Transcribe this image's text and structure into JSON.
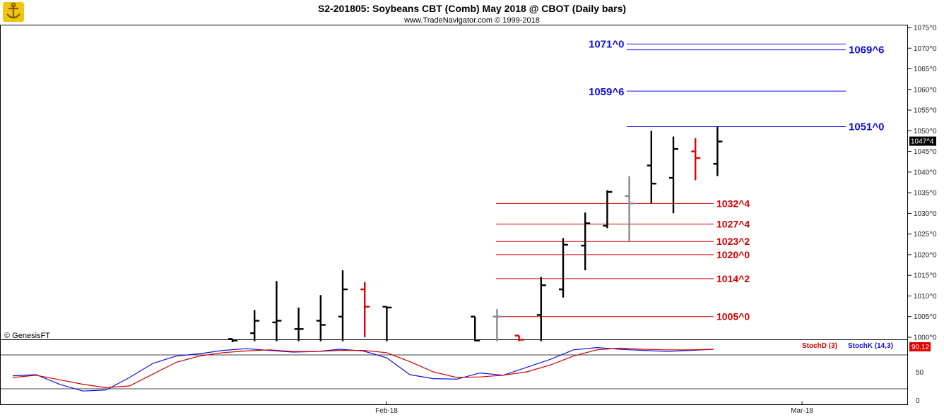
{
  "header": {
    "title": "S2-201805:  Soybeans CBT (Comb) May 2018 @ CBOT  (Daily bars)",
    "subtitle": "www.TradeNavigator.com © 1999-2018",
    "watermark": "© GenesisFT"
  },
  "colors": {
    "up_bar": "#000000",
    "down_bar": "#e00000",
    "neutral_bar": "#888888",
    "blue_level": "#1010e0",
    "red_level": "#d00000",
    "stoch_k": "#1010e0",
    "stoch_d": "#d00000",
    "last_price_bg": "#000000",
    "stoch_value_bg": "#e00000"
  },
  "chart_data": [
    {
      "type": "ohlc",
      "title": "S2-201805:  Soybeans CBT (Comb) May 2018 @ CBOT  (Daily bars)",
      "ylim": [
        996,
        1076
      ],
      "y_ticks": [
        "1075^0",
        "1070^0",
        "1065^0",
        "1060^0",
        "1055^0",
        "1050^0",
        "1045^0",
        "1040^0",
        "1035^0",
        "1030^0",
        "1025^0",
        "1020^0",
        "1015^0",
        "1010^0",
        "1005^0",
        "1000^0"
      ],
      "x_tick_labels": [
        "Feb-18",
        "Mar-18"
      ],
      "last_price_label": "1047^4",
      "bars": [
        {
          "i": 0,
          "o": 999.6,
          "h": 999.6,
          "l": 999.0,
          "c": 999.2,
          "color": "up"
        },
        {
          "i": 1,
          "o": 1001.0,
          "h": 1006.6,
          "l": 999.2,
          "c": 1004.0,
          "color": "up"
        },
        {
          "i": 2,
          "o": 1003.6,
          "h": 1013.6,
          "l": 999.2,
          "c": 1004.0,
          "color": "up"
        },
        {
          "i": 3,
          "o": 1002.0,
          "h": 1007.2,
          "l": 999.2,
          "c": 1002.0,
          "color": "up"
        },
        {
          "i": 4,
          "o": 1004.0,
          "h": 1010.2,
          "l": 999.2,
          "c": 1003.0,
          "color": "up"
        },
        {
          "i": 5,
          "o": 1005.0,
          "h": 1016.2,
          "l": 999.2,
          "c": 1011.6,
          "color": "up"
        },
        {
          "i": 6,
          "o": 1011.6,
          "h": 1013.4,
          "l": 1000.2,
          "c": 1007.4,
          "color": "down"
        },
        {
          "i": 7,
          "o": 1007.4,
          "h": 1007.4,
          "l": 999.2,
          "c": 1007.2,
          "color": "up"
        },
        {
          "i": 11,
          "o": 1005.0,
          "h": 1005.0,
          "l": 999.2,
          "c": 999.2,
          "color": "up"
        },
        {
          "i": 12,
          "o": 1005.0,
          "h": 1006.8,
          "l": 999.2,
          "c": 1005.0,
          "color": "neutral"
        },
        {
          "i": 13,
          "o": 1000.4,
          "h": 1000.4,
          "l": 999.2,
          "c": 999.4,
          "color": "down"
        },
        {
          "i": 14,
          "o": 1005.4,
          "h": 1014.6,
          "l": 999.2,
          "c": 1012.6,
          "color": "up"
        },
        {
          "i": 15,
          "o": 1011.6,
          "h": 1024.0,
          "l": 1009.8,
          "c": 1022.4,
          "color": "up"
        },
        {
          "i": 16,
          "o": 1022.2,
          "h": 1030.2,
          "l": 1016.4,
          "c": 1027.6,
          "color": "up"
        },
        {
          "i": 17,
          "o": 1027.0,
          "h": 1035.6,
          "l": 1026.6,
          "c": 1035.2,
          "color": "up"
        },
        {
          "i": 18,
          "o": 1034.2,
          "h": 1039.0,
          "l": 1023.2,
          "c": 1032.4,
          "color": "neutral"
        },
        {
          "i": 19,
          "o": 1041.6,
          "h": 1050.0,
          "l": 1032.6,
          "c": 1037.2,
          "color": "up"
        },
        {
          "i": 20,
          "o": 1038.6,
          "h": 1048.6,
          "l": 1030.2,
          "c": 1045.6,
          "color": "up"
        },
        {
          "i": 21,
          "o": 1045.0,
          "h": 1048.2,
          "l": 1038.2,
          "c": 1043.4,
          "color": "down"
        },
        {
          "i": 22,
          "o": 1042.0,
          "h": 1051.0,
          "l": 1039.2,
          "c": 1047.4,
          "color": "up"
        }
      ],
      "levels": [
        {
          "value": 1071.0,
          "label": "1071^0",
          "color": "blue"
        },
        {
          "value": 1069.6,
          "label": "1069^6",
          "color": "blue"
        },
        {
          "value": 1059.6,
          "label": "1059^6",
          "color": "blue"
        },
        {
          "value": 1051.0,
          "label": "1051^0",
          "color": "blue"
        },
        {
          "value": 1032.4,
          "label": "1032^4",
          "color": "red"
        },
        {
          "value": 1027.4,
          "label": "1027^4",
          "color": "red"
        },
        {
          "value": 1023.2,
          "label": "1023^2",
          "color": "red"
        },
        {
          "value": 1020.0,
          "label": "1020^0",
          "color": "red"
        },
        {
          "value": 1014.2,
          "label": "1014^2",
          "color": "red"
        },
        {
          "value": 1005.0,
          "label": "1005^0",
          "color": "red"
        }
      ]
    },
    {
      "type": "line",
      "ylim": [
        0,
        100
      ],
      "y_ticks": [
        "50",
        "0"
      ],
      "reference_lines": [
        80,
        20
      ],
      "value_label": "90.12",
      "series": [
        {
          "name": "StochK (14,3)",
          "color": "blue",
          "values": [
            43,
            45,
            28,
            16,
            18,
            40,
            65,
            78,
            82,
            88,
            91,
            88,
            85,
            86,
            90,
            87,
            75,
            45,
            38,
            37,
            48,
            44,
            58,
            72,
            89,
            93,
            90,
            88,
            86,
            88,
            90
          ]
        },
        {
          "name": "StochD (3)",
          "color": "red",
          "values": [
            40,
            44,
            36,
            28,
            22,
            25,
            46,
            67,
            78,
            84,
            87,
            89,
            86,
            86,
            88,
            88,
            84,
            68,
            50,
            40,
            41,
            44,
            50,
            62,
            78,
            89,
            92,
            90,
            89,
            89,
            90
          ]
        }
      ]
    }
  ]
}
